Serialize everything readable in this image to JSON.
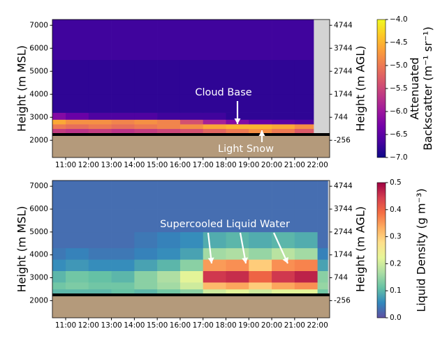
{
  "chart_data": [
    {
      "type": "heatmap",
      "ylabel": "Height (m MSL)",
      "y2label": "Height (m AGL)",
      "colorbar_label": [
        "Attenuated",
        "Backscatter (m⁻¹ sr⁻¹)"
      ],
      "xlim": [
        10.42,
        22.53
      ],
      "xticks": [
        {
          "value": 11,
          "label": "11:00"
        },
        {
          "value": 12,
          "label": "12:00"
        },
        {
          "value": 13,
          "label": "13:00"
        },
        {
          "value": 14,
          "label": "14:00"
        },
        {
          "value": 15,
          "label": "15:00"
        },
        {
          "value": 16,
          "label": "16:00"
        },
        {
          "value": 17,
          "label": "17:00"
        },
        {
          "value": 18,
          "label": "18:00"
        },
        {
          "value": 19,
          "label": "19:00"
        },
        {
          "value": 20,
          "label": "20:00"
        },
        {
          "value": 21,
          "label": "21:00"
        },
        {
          "value": 22,
          "label": "22:00"
        }
      ],
      "ylim": [
        1250,
        7250
      ],
      "yticks": [
        2000,
        3000,
        4000,
        5000,
        6000,
        7000
      ],
      "y2lim": [
        -1006,
        4994
      ],
      "y2ticks": [
        -256,
        744,
        1744,
        2744,
        3744,
        4744
      ],
      "clim": [
        -7,
        -4
      ],
      "cticks": [
        {
          "value": -4,
          "label": "−4.0"
        },
        {
          "value": -4.5,
          "label": "−4.5"
        },
        {
          "value": -5,
          "label": "−5.0"
        },
        {
          "value": -5.5,
          "label": "−5.5"
        },
        {
          "value": -6,
          "label": "−6.0"
        },
        {
          "value": -6.5,
          "label": "−6.5"
        },
        {
          "value": -7,
          "label": "−7.0"
        }
      ],
      "colormap": [
        "#0d0887",
        "#46039f",
        "#7201a8",
        "#9c179e",
        "#bd3786",
        "#d8576b",
        "#ed7953",
        "#fb9f3a",
        "#fdca26",
        "#f0f921"
      ],
      "ground_level": 2250,
      "ground_color": "#b49a7b",
      "no_data_color": "#d3d3d3",
      "x_bins": [
        10.42,
        11,
        12,
        13,
        14,
        15,
        16,
        17,
        18,
        19,
        20,
        21,
        21.83
      ],
      "y_bins": [
        2250,
        2500,
        2700,
        2900,
        3200,
        4000,
        5500,
        7250
      ],
      "values": [
        [
          -5.6,
          -5.7,
          -5.6,
          -5.7,
          -5.6,
          -5.5,
          -5.4,
          -5.2,
          -5.0,
          -4.8,
          -5.0,
          -5.3
        ],
        [
          -5.0,
          -5.1,
          -5.0,
          -5.1,
          -5.0,
          -4.9,
          -4.8,
          -4.6,
          -4.5,
          -4.5,
          -4.6,
          -4.8
        ],
        [
          -4.6,
          -4.8,
          -4.8,
          -4.9,
          -4.8,
          -4.9,
          -5.4,
          -5.9,
          -6.2,
          -6.4,
          -6.5,
          -6.6
        ],
        [
          -6.2,
          -6.4,
          -6.6,
          -6.6,
          -6.6,
          -6.7,
          -6.7,
          -6.7,
          -6.8,
          -6.8,
          -6.8,
          -6.8
        ],
        [
          -6.8,
          -6.8,
          -6.8,
          -6.8,
          -6.8,
          -6.8,
          -6.8,
          -6.8,
          -6.8,
          -6.8,
          -6.8,
          -6.8
        ],
        [
          -6.8,
          -6.8,
          -6.8,
          -6.8,
          -6.8,
          -6.8,
          -6.8,
          -6.8,
          -6.8,
          -6.8,
          -6.8,
          -6.8
        ],
        [
          -6.7,
          -6.7,
          -6.7,
          -6.7,
          -6.7,
          -6.7,
          -6.7,
          -6.7,
          -6.7,
          -6.7,
          -6.7,
          -6.7
        ]
      ],
      "annotations": [
        "Cloud Base",
        "Light Snow"
      ]
    },
    {
      "type": "heatmap",
      "ylabel": "Height (m MSL)",
      "y2label": "Height (m AGL)",
      "colorbar_label": [
        "Liquid Density (g m⁻³)"
      ],
      "xlim": [
        10.42,
        22.53
      ],
      "xticks": [
        {
          "value": 11,
          "label": "11:00"
        },
        {
          "value": 12,
          "label": "12:00"
        },
        {
          "value": 13,
          "label": "13:00"
        },
        {
          "value": 14,
          "label": "14:00"
        },
        {
          "value": 15,
          "label": "15:00"
        },
        {
          "value": 16,
          "label": "16:00"
        },
        {
          "value": 17,
          "label": "17:00"
        },
        {
          "value": 18,
          "label": "18:00"
        },
        {
          "value": 19,
          "label": "19:00"
        },
        {
          "value": 20,
          "label": "20:00"
        },
        {
          "value": 21,
          "label": "21:00"
        },
        {
          "value": 22,
          "label": "22:00"
        }
      ],
      "ylim": [
        1250,
        7250
      ],
      "yticks": [
        2000,
        3000,
        4000,
        5000,
        6000,
        7000
      ],
      "y2lim": [
        -1006,
        4994
      ],
      "y2ticks": [
        -256,
        744,
        1744,
        2744,
        3744,
        4744
      ],
      "clim": [
        0,
        0.5
      ],
      "cticks": [
        {
          "value": 0,
          "label": "0.0"
        },
        0.1,
        0.2,
        0.3,
        0.4,
        0.5
      ],
      "colormap": [
        "#5e4fa2",
        "#3288bd",
        "#66c2a5",
        "#abdda4",
        "#e6f598",
        "#fee08b",
        "#fdae61",
        "#f46d43",
        "#d53e4f",
        "#9e0142"
      ],
      "ground_level": 2250,
      "ground_color": "#b49a7b",
      "no_data_color": "#d3d3d3",
      "x_bins": [
        10.42,
        11,
        12,
        13,
        14,
        15,
        16,
        17,
        18,
        19,
        20,
        21,
        22,
        22.45
      ],
      "y_bins": [
        2250,
        2500,
        2800,
        3300,
        3800,
        4300,
        5000,
        6000,
        7250
      ],
      "values": [
        [
          0.1,
          0.1,
          0.1,
          0.11,
          0.1,
          0.12,
          0.14,
          0.2,
          0.22,
          0.2,
          0.22,
          0.22,
          0.12
        ],
        [
          0.12,
          0.13,
          0.12,
          0.12,
          0.14,
          0.16,
          0.2,
          0.32,
          0.34,
          0.3,
          0.34,
          0.36,
          0.15
        ],
        [
          0.1,
          0.12,
          0.11,
          0.1,
          0.14,
          0.17,
          0.22,
          0.45,
          0.46,
          0.4,
          0.45,
          0.47,
          0.14
        ],
        [
          0.06,
          0.07,
          0.06,
          0.06,
          0.08,
          0.1,
          0.14,
          0.35,
          0.36,
          0.3,
          0.36,
          0.37,
          0.08
        ],
        [
          0.04,
          0.05,
          0.04,
          0.04,
          0.05,
          0.06,
          0.08,
          0.16,
          0.17,
          0.15,
          0.18,
          0.16,
          0.05
        ],
        [
          0.03,
          0.03,
          0.03,
          0.03,
          0.04,
          0.05,
          0.06,
          0.09,
          0.1,
          0.09,
          0.1,
          0.09,
          0.03
        ],
        [
          0.03,
          0.03,
          0.03,
          0.03,
          0.03,
          0.03,
          0.03,
          0.03,
          0.03,
          0.03,
          0.03,
          0.03,
          0.03
        ],
        [
          0.03,
          0.03,
          0.03,
          0.03,
          0.03,
          0.03,
          0.03,
          0.03,
          0.03,
          0.03,
          0.03,
          0.03,
          0.03
        ]
      ],
      "annotations": [
        "Supercooled Liquid Water"
      ]
    }
  ]
}
